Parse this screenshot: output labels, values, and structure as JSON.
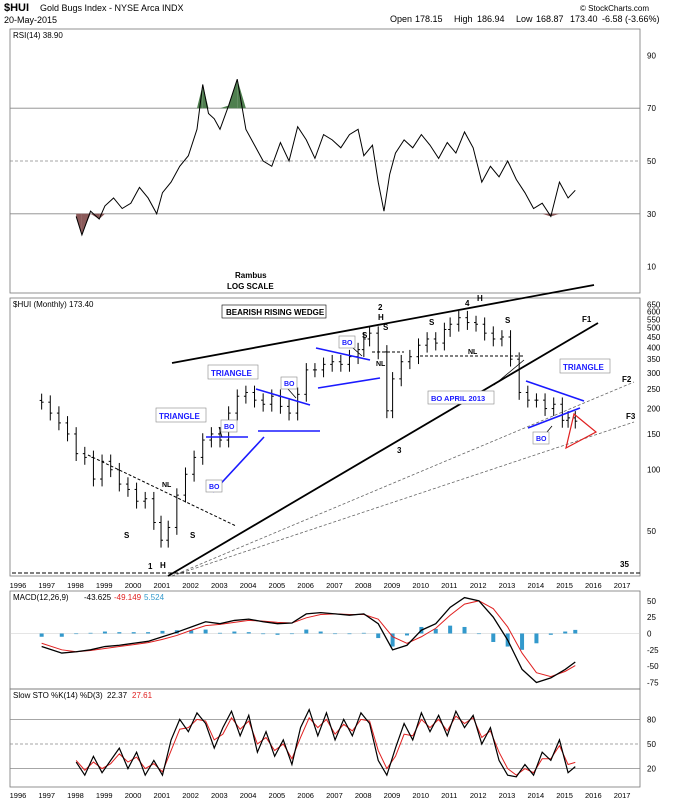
{
  "header": {
    "symbol": "$HUI",
    "name": "Gold Bugs Index - NYSE Arca INDX",
    "date": "20-May-2015",
    "ohlc": {
      "open_label": "Open",
      "open": "178.15",
      "high_label": "High",
      "high": "186.94",
      "low_label": "Low",
      "low": "168.87",
      "close": "173.40",
      "change": "-6.58 (-3.66%)"
    },
    "copyright": "© StockCharts.com"
  },
  "colors": {
    "price_bars": "#000000",
    "annotation_blue": "#1a1aff",
    "trend_black": "#000000",
    "triangle_red": "#e02020",
    "macd_line": "#000000",
    "signal_line": "#e02020",
    "histogram": "#3399cc",
    "rsi_overbought_fill": "#4f7f4f",
    "rsi_oversold_fill": "#8b5a5a",
    "guide_line": "#888888"
  },
  "chart_data": [
    {
      "type": "line",
      "panel": "rsi",
      "legend": "RSI(14) 38.90",
      "y_ticks": [
        10,
        30,
        50,
        70,
        90
      ],
      "reference_lines": [
        30,
        50,
        70
      ],
      "x": [
        1998.0,
        1998.2,
        1998.5,
        1998.8,
        1999.0,
        1999.3,
        1999.6,
        1999.9,
        2000.2,
        2000.5,
        2000.8,
        2001.0,
        2001.3,
        2001.6,
        2001.9,
        2002.2,
        2002.4,
        2002.6,
        2002.8,
        2003.0,
        2003.3,
        2003.6,
        2003.9,
        2004.2,
        2004.5,
        2004.8,
        2005.1,
        2005.4,
        2005.7,
        2006.0,
        2006.3,
        2006.6,
        2006.9,
        2007.2,
        2007.5,
        2007.8,
        2008.0,
        2008.3,
        2008.5,
        2008.7,
        2008.9,
        2009.1,
        2009.4,
        2009.7,
        2010.0,
        2010.3,
        2010.6,
        2010.9,
        2011.2,
        2011.5,
        2011.8,
        2012.1,
        2012.4,
        2012.7,
        2013.0,
        2013.3,
        2013.6,
        2013.9,
        2014.2,
        2014.5,
        2014.8,
        2015.1,
        2015.35
      ],
      "y": [
        29,
        22,
        31,
        28,
        33,
        36,
        32,
        34,
        40,
        36,
        30,
        38,
        42,
        48,
        52,
        62,
        79,
        68,
        66,
        62,
        71,
        81,
        62,
        56,
        50,
        48,
        57,
        50,
        63,
        58,
        51,
        60,
        58,
        55,
        60,
        62,
        52,
        56,
        42,
        31,
        45,
        53,
        58,
        55,
        60,
        56,
        51,
        57,
        53,
        61,
        55,
        42,
        48,
        44,
        50,
        43,
        38,
        32,
        34,
        29,
        42,
        36,
        38.9
      ],
      "annotations": [
        "Rambus",
        "LOG SCALE"
      ]
    },
    {
      "type": "bar",
      "subtype": "ohlc",
      "panel": "price",
      "legend": "$HUI (Monthly) 173.40",
      "scale": "log",
      "y_ticks": [
        50,
        100,
        150,
        200,
        250,
        300,
        350,
        400,
        450,
        500,
        550,
        600,
        650
      ],
      "x_ticks": [
        "1996",
        "1997",
        "1998",
        "1999",
        "2000",
        "2001",
        "2002",
        "2003",
        "2004",
        "2005",
        "2006",
        "2007",
        "2008",
        "2009",
        "2010",
        "2011",
        "2012",
        "2013",
        "2014",
        "2015",
        "2016",
        "2017"
      ],
      "x": [
        1996.8,
        1997.1,
        1997.4,
        1997.7,
        1998.0,
        1998.3,
        1998.6,
        1998.9,
        1999.2,
        1999.5,
        1999.8,
        2000.1,
        2000.4,
        2000.7,
        2000.95,
        2001.2,
        2001.5,
        2001.8,
        2002.1,
        2002.4,
        2002.7,
        2003.0,
        2003.3,
        2003.6,
        2003.9,
        2004.2,
        2004.5,
        2004.8,
        2005.1,
        2005.4,
        2005.7,
        2006.0,
        2006.3,
        2006.6,
        2006.9,
        2007.2,
        2007.5,
        2007.8,
        2008.0,
        2008.2,
        2008.5,
        2008.8,
        2009.0,
        2009.3,
        2009.6,
        2009.9,
        2010.2,
        2010.5,
        2010.8,
        2011.0,
        2011.3,
        2011.6,
        2011.9,
        2012.2,
        2012.5,
        2012.8,
        2013.1,
        2013.4,
        2013.7,
        2014.0,
        2014.3,
        2014.6,
        2014.9,
        2015.1,
        2015.35
      ],
      "close": [
        215,
        190,
        170,
        150,
        120,
        115,
        90,
        110,
        100,
        85,
        80,
        70,
        72,
        55,
        45,
        52,
        75,
        95,
        115,
        140,
        150,
        140,
        190,
        230,
        240,
        220,
        210,
        230,
        205,
        190,
        235,
        310,
        310,
        330,
        340,
        330,
        360,
        390,
        440,
        470,
        380,
        195,
        280,
        340,
        360,
        410,
        440,
        420,
        490,
        520,
        560,
        530,
        520,
        470,
        440,
        450,
        350,
        240,
        220,
        220,
        200,
        210,
        175,
        180,
        173.4
      ],
      "spread_pct": 0.08,
      "annotations": [
        "BEARISH RISING WEDGE",
        "TRIANGLE",
        "TRIANGLE",
        "TRIANGLE",
        "BO",
        "BO",
        "BO",
        "BO",
        "NL",
        "NL",
        "S",
        "S",
        "H",
        "H",
        "1",
        "2",
        "3",
        "4",
        "H",
        "S",
        "S",
        "BO APRIL 2013",
        "F1",
        "F2",
        "F3",
        "35"
      ]
    },
    {
      "type": "line",
      "panel": "macd",
      "legend_prefix": "MACD(12,26,9)",
      "legend_macd": "-43.625",
      "legend_signal": "-49.149",
      "legend_hist": "5.524",
      "y_ticks": [
        50,
        25,
        0,
        -25,
        -50,
        -75
      ],
      "x": [
        1996.8,
        1997.5,
        1998.0,
        1998.5,
        1999.0,
        1999.5,
        2000.0,
        2000.5,
        2001.0,
        2001.5,
        2002.0,
        2002.5,
        2003.0,
        2003.5,
        2004.0,
        2004.5,
        2005.0,
        2005.5,
        2006.0,
        2006.5,
        2007.0,
        2007.5,
        2008.0,
        2008.5,
        2009.0,
        2009.5,
        2010.0,
        2010.5,
        2011.0,
        2011.5,
        2012.0,
        2012.5,
        2013.0,
        2013.5,
        2014.0,
        2014.5,
        2015.0,
        2015.35
      ],
      "macd": [
        -20,
        -30,
        -28,
        -25,
        -20,
        -18,
        -15,
        -12,
        -5,
        2,
        10,
        18,
        15,
        20,
        22,
        18,
        15,
        16,
        30,
        32,
        30,
        28,
        30,
        15,
        -25,
        -18,
        5,
        15,
        40,
        55,
        50,
        25,
        -10,
        -55,
        -75,
        -68,
        -55,
        -43.6
      ],
      "signal": [
        -15,
        -25,
        -28,
        -26,
        -23,
        -20,
        -17,
        -14,
        -9,
        -3,
        5,
        12,
        14,
        17,
        20,
        19,
        17,
        16,
        24,
        29,
        30,
        29,
        29,
        22,
        -5,
        -15,
        -5,
        8,
        28,
        45,
        50,
        38,
        10,
        -30,
        -60,
        -66,
        -58,
        -49.1
      ]
    },
    {
      "type": "line",
      "panel": "stochastic",
      "legend_prefix": "Slow STO %K(14) %D(3)",
      "legend_k": "22.37",
      "legend_d": "27.61",
      "y_ticks": [
        80,
        50,
        20
      ],
      "reference_lines": [
        20,
        50,
        80
      ],
      "x": [
        1998.0,
        1998.3,
        1998.6,
        1998.9,
        1999.2,
        1999.5,
        1999.8,
        2000.1,
        2000.4,
        2000.7,
        2001.0,
        2001.3,
        2001.6,
        2001.9,
        2002.2,
        2002.5,
        2002.8,
        2003.1,
        2003.4,
        2003.7,
        2004.0,
        2004.3,
        2004.6,
        2004.9,
        2005.2,
        2005.5,
        2005.8,
        2006.1,
        2006.4,
        2006.7,
        2007.0,
        2007.3,
        2007.6,
        2007.9,
        2008.2,
        2008.5,
        2008.8,
        2009.1,
        2009.4,
        2009.7,
        2010.0,
        2010.3,
        2010.6,
        2010.9,
        2011.2,
        2011.5,
        2011.8,
        2012.1,
        2012.4,
        2012.7,
        2013.0,
        2013.3,
        2013.6,
        2013.9,
        2014.2,
        2014.5,
        2014.8,
        2015.1,
        2015.35
      ],
      "k": [
        28,
        12,
        35,
        15,
        30,
        45,
        20,
        40,
        12,
        30,
        12,
        55,
        80,
        65,
        88,
        75,
        45,
        70,
        90,
        60,
        85,
        40,
        65,
        35,
        55,
        25,
        70,
        92,
        60,
        88,
        55,
        80,
        60,
        88,
        75,
        30,
        12,
        45,
        75,
        55,
        88,
        65,
        85,
        60,
        90,
        70,
        85,
        50,
        70,
        30,
        12,
        10,
        25,
        12,
        40,
        30,
        55,
        15,
        22.4
      ],
      "d": [
        30,
        18,
        28,
        20,
        26,
        38,
        28,
        34,
        20,
        26,
        16,
        42,
        68,
        70,
        80,
        78,
        55,
        62,
        82,
        68,
        78,
        50,
        58,
        42,
        50,
        32,
        58,
        82,
        70,
        80,
        62,
        74,
        66,
        80,
        78,
        42,
        20,
        35,
        62,
        60,
        80,
        70,
        80,
        66,
        84,
        75,
        82,
        58,
        66,
        40,
        20,
        12,
        20,
        15,
        32,
        32,
        48,
        25,
        27.6
      ]
    }
  ]
}
